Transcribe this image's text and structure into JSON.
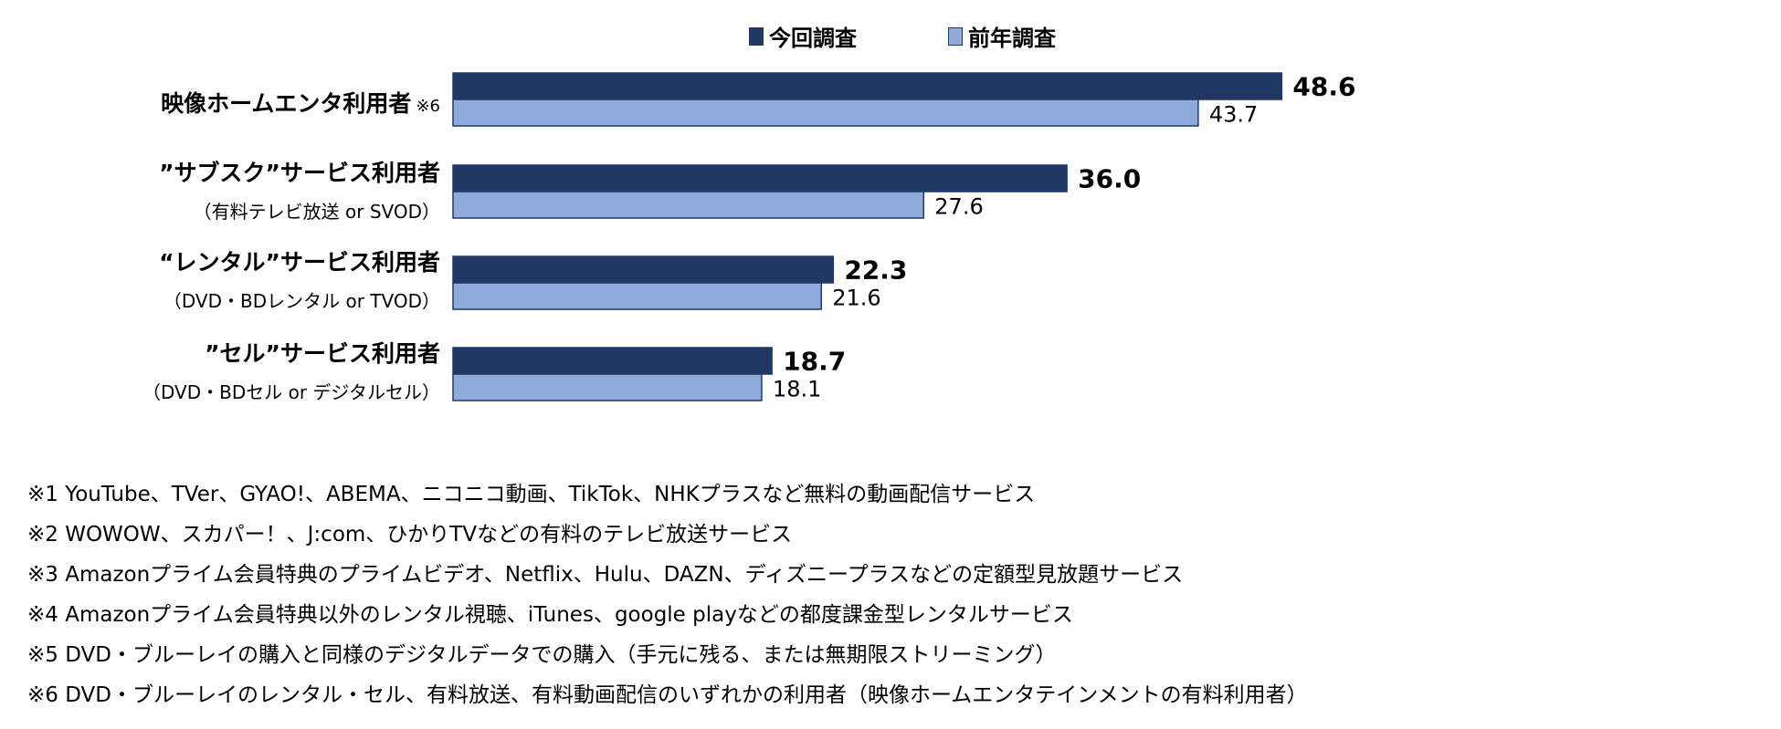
{
  "chart_data": {
    "type": "bar",
    "orientation": "horizontal",
    "categories": [
      {
        "label": "映像ホームエンタ利用者",
        "note": "※6",
        "sub": ""
      },
      {
        "label": "”サブスク”サービス利用者",
        "note": "",
        "sub": "（有料テレビ放送 or SVOD）"
      },
      {
        "label": "“レンタル”サービス利用者",
        "note": "",
        "sub": "（DVD・BDレンタル or TVOD）"
      },
      {
        "label": "”セル”サービス利用者",
        "note": "",
        "sub": "（DVD・BDセル or デジタルセル）"
      }
    ],
    "series": [
      {
        "name": "今回調査",
        "color": "#203864",
        "values": [
          48.6,
          36.0,
          22.3,
          18.7
        ],
        "labels": [
          "48.6",
          "36.0",
          "22.3",
          "18.7"
        ]
      },
      {
        "name": "前年調査",
        "color": "#8faadc",
        "values": [
          43.7,
          27.6,
          21.6,
          18.1
        ],
        "labels": [
          "43.7",
          "27.6",
          "21.6",
          "18.1"
        ]
      }
    ],
    "xlim": [
      0,
      60
    ],
    "grid": false,
    "legend": "top-center"
  },
  "footnotes": [
    "※1 YouTube、TVer、GYAO!、ABEMA、ニコニコ動画、TikTok、NHKプラスなど無料の動画配信サービス",
    "※2 WOWOW、スカパー！、J:com、ひかりTVなどの有料のテレビ放送サービス",
    "※3 Amazonプライム会員特典のプライムビデオ、Netflix、Hulu、DAZN、ディズニープラスなどの定額型見放題サービス",
    "※4 Amazonプライム会員特典以外のレンタル視聴、iTunes、google playなどの都度課金型レンタルサービス",
    "※5 DVD・ブルーレイの購入と同様のデジタルデータでの購入（手元に残る、または無期限ストリーミング）",
    "※6 DVD・ブルーレイのレンタル・セル、有料放送、有料動画配信のいずれかの利用者（映像ホームエンタテインメントの有料利用者）"
  ]
}
